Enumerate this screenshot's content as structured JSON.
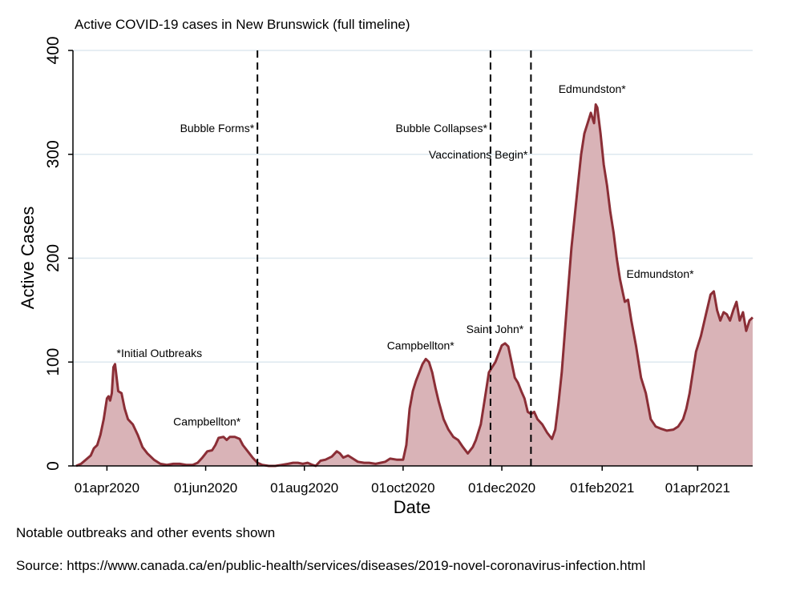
{
  "chart_data": {
    "type": "area",
    "title": "Active COVID-19 cases in New Brunswick (full timeline)",
    "xlabel": "Date",
    "ylabel": "Active Cases",
    "ylim": [
      0,
      400
    ],
    "yticks": [
      0,
      100,
      200,
      300,
      400
    ],
    "xlim": [
      "2020-03-11",
      "2021-05-05"
    ],
    "xticks": [
      {
        "date": "2020-04-01",
        "label": "01apr2020"
      },
      {
        "date": "2020-06-01",
        "label": "01jun2020"
      },
      {
        "date": "2020-08-01",
        "label": "01aug2020"
      },
      {
        "date": "2020-10-01",
        "label": "01oct2020"
      },
      {
        "date": "2020-12-01",
        "label": "01dec2020"
      },
      {
        "date": "2021-02-01",
        "label": "01feb2021"
      },
      {
        "date": "2021-04-01",
        "label": "01apr2021"
      }
    ],
    "grid": true,
    "colors": {
      "line": "#8b2e36",
      "fill": "#d9b3b7",
      "grid": "#dde8ef"
    },
    "series": [
      {
        "points": [
          [
            "2020-03-13",
            0
          ],
          [
            "2020-03-16",
            2
          ],
          [
            "2020-03-19",
            6
          ],
          [
            "2020-03-22",
            10
          ],
          [
            "2020-03-24",
            17
          ],
          [
            "2020-03-26",
            20
          ],
          [
            "2020-03-28",
            30
          ],
          [
            "2020-03-30",
            45
          ],
          [
            "2020-03-31",
            55
          ],
          [
            "2020-04-01",
            65
          ],
          [
            "2020-04-02",
            67
          ],
          [
            "2020-04-03",
            63
          ],
          [
            "2020-04-04",
            70
          ],
          [
            "2020-04-05",
            95
          ],
          [
            "2020-04-06",
            98
          ],
          [
            "2020-04-07",
            85
          ],
          [
            "2020-04-08",
            72
          ],
          [
            "2020-04-10",
            70
          ],
          [
            "2020-04-12",
            55
          ],
          [
            "2020-04-14",
            45
          ],
          [
            "2020-04-17",
            40
          ],
          [
            "2020-04-20",
            30
          ],
          [
            "2020-04-23",
            18
          ],
          [
            "2020-04-26",
            12
          ],
          [
            "2020-04-30",
            6
          ],
          [
            "2020-05-04",
            2
          ],
          [
            "2020-05-08",
            1
          ],
          [
            "2020-05-12",
            2
          ],
          [
            "2020-05-16",
            2
          ],
          [
            "2020-05-20",
            1
          ],
          [
            "2020-05-24",
            1
          ],
          [
            "2020-05-27",
            3
          ],
          [
            "2020-05-30",
            8
          ],
          [
            "2020-06-02",
            14
          ],
          [
            "2020-06-05",
            15
          ],
          [
            "2020-06-07",
            20
          ],
          [
            "2020-06-09",
            27
          ],
          [
            "2020-06-12",
            28
          ],
          [
            "2020-06-14",
            25
          ],
          [
            "2020-06-16",
            28
          ],
          [
            "2020-06-19",
            28
          ],
          [
            "2020-06-22",
            26
          ],
          [
            "2020-06-24",
            20
          ],
          [
            "2020-06-27",
            14
          ],
          [
            "2020-06-30",
            8
          ],
          [
            "2020-07-03",
            3
          ],
          [
            "2020-07-06",
            1
          ],
          [
            "2020-07-10",
            0
          ],
          [
            "2020-07-14",
            0
          ],
          [
            "2020-07-18",
            1
          ],
          [
            "2020-07-22",
            2
          ],
          [
            "2020-07-25",
            3
          ],
          [
            "2020-07-28",
            3
          ],
          [
            "2020-07-31",
            2
          ],
          [
            "2020-08-03",
            3
          ],
          [
            "2020-08-06",
            1
          ],
          [
            "2020-08-08",
            0
          ],
          [
            "2020-08-11",
            5
          ],
          [
            "2020-08-14",
            6
          ],
          [
            "2020-08-18",
            9
          ],
          [
            "2020-08-21",
            14
          ],
          [
            "2020-08-23",
            12
          ],
          [
            "2020-08-25",
            8
          ],
          [
            "2020-08-28",
            10
          ],
          [
            "2020-08-31",
            7
          ],
          [
            "2020-09-03",
            4
          ],
          [
            "2020-09-07",
            3
          ],
          [
            "2020-09-10",
            3
          ],
          [
            "2020-09-14",
            2
          ],
          [
            "2020-09-17",
            3
          ],
          [
            "2020-09-20",
            4
          ],
          [
            "2020-09-23",
            7
          ],
          [
            "2020-09-27",
            6
          ],
          [
            "2020-10-01",
            6
          ],
          [
            "2020-10-03",
            20
          ],
          [
            "2020-10-05",
            55
          ],
          [
            "2020-10-07",
            72
          ],
          [
            "2020-10-09",
            82
          ],
          [
            "2020-10-11",
            90
          ],
          [
            "2020-10-13",
            98
          ],
          [
            "2020-10-15",
            103
          ],
          [
            "2020-10-17",
            100
          ],
          [
            "2020-10-19",
            90
          ],
          [
            "2020-10-21",
            75
          ],
          [
            "2020-10-23",
            62
          ],
          [
            "2020-10-26",
            45
          ],
          [
            "2020-10-29",
            35
          ],
          [
            "2020-11-01",
            28
          ],
          [
            "2020-11-04",
            25
          ],
          [
            "2020-11-07",
            18
          ],
          [
            "2020-11-10",
            12
          ],
          [
            "2020-11-13",
            18
          ],
          [
            "2020-11-15",
            25
          ],
          [
            "2020-11-18",
            40
          ],
          [
            "2020-11-21",
            70
          ],
          [
            "2020-11-23",
            90
          ],
          [
            "2020-11-25",
            95
          ],
          [
            "2020-11-27",
            100
          ],
          [
            "2020-11-29",
            108
          ],
          [
            "2020-12-01",
            116
          ],
          [
            "2020-12-03",
            118
          ],
          [
            "2020-12-05",
            115
          ],
          [
            "2020-12-07",
            100
          ],
          [
            "2020-12-09",
            85
          ],
          [
            "2020-12-11",
            80
          ],
          [
            "2020-12-13",
            72
          ],
          [
            "2020-12-15",
            65
          ],
          [
            "2020-12-17",
            52
          ],
          [
            "2020-12-19",
            50
          ],
          [
            "2020-12-21",
            52
          ],
          [
            "2020-12-23",
            45
          ],
          [
            "2020-12-26",
            40
          ],
          [
            "2020-12-29",
            32
          ],
          [
            "2021-01-01",
            26
          ],
          [
            "2021-01-03",
            35
          ],
          [
            "2021-01-05",
            60
          ],
          [
            "2021-01-07",
            90
          ],
          [
            "2021-01-09",
            130
          ],
          [
            "2021-01-11",
            170
          ],
          [
            "2021-01-13",
            210
          ],
          [
            "2021-01-15",
            240
          ],
          [
            "2021-01-17",
            270
          ],
          [
            "2021-01-19",
            300
          ],
          [
            "2021-01-21",
            320
          ],
          [
            "2021-01-23",
            330
          ],
          [
            "2021-01-25",
            340
          ],
          [
            "2021-01-26",
            335
          ],
          [
            "2021-01-27",
            330
          ],
          [
            "2021-01-28",
            348
          ],
          [
            "2021-01-29",
            345
          ],
          [
            "2021-01-31",
            320
          ],
          [
            "2021-02-02",
            290
          ],
          [
            "2021-02-04",
            270
          ],
          [
            "2021-02-06",
            245
          ],
          [
            "2021-02-08",
            225
          ],
          [
            "2021-02-10",
            200
          ],
          [
            "2021-02-12",
            180
          ],
          [
            "2021-02-14",
            165
          ],
          [
            "2021-02-15",
            158
          ],
          [
            "2021-02-17",
            160
          ],
          [
            "2021-02-19",
            140
          ],
          [
            "2021-02-22",
            115
          ],
          [
            "2021-02-25",
            85
          ],
          [
            "2021-02-28",
            70
          ],
          [
            "2021-03-03",
            45
          ],
          [
            "2021-03-06",
            38
          ],
          [
            "2021-03-09",
            36
          ],
          [
            "2021-03-13",
            34
          ],
          [
            "2021-03-17",
            35
          ],
          [
            "2021-03-20",
            38
          ],
          [
            "2021-03-23",
            45
          ],
          [
            "2021-03-25",
            55
          ],
          [
            "2021-03-27",
            70
          ],
          [
            "2021-03-29",
            90
          ],
          [
            "2021-03-31",
            110
          ],
          [
            "2021-04-03",
            125
          ],
          [
            "2021-04-06",
            145
          ],
          [
            "2021-04-09",
            165
          ],
          [
            "2021-04-11",
            168
          ],
          [
            "2021-04-13",
            150
          ],
          [
            "2021-04-15",
            140
          ],
          [
            "2021-04-17",
            148
          ],
          [
            "2021-04-19",
            146
          ],
          [
            "2021-04-21",
            140
          ],
          [
            "2021-04-23",
            150
          ],
          [
            "2021-04-25",
            158
          ],
          [
            "2021-04-27",
            140
          ],
          [
            "2021-04-29",
            148
          ],
          [
            "2021-05-01",
            130
          ],
          [
            "2021-05-03",
            140
          ],
          [
            "2021-05-05",
            143
          ]
        ]
      }
    ],
    "vlines": [
      {
        "date": "2020-07-03",
        "label": "Bubble Forms*"
      },
      {
        "date": "2020-11-24",
        "label": "Bubble Collapses*"
      },
      {
        "date": "2020-12-19",
        "label": "Vaccinations Begin*"
      }
    ],
    "annotations": [
      {
        "text": "*Initial Outbreaks",
        "date": "2020-04-07",
        "value": 105
      },
      {
        "text": "Campbellton*",
        "date": "2020-05-12",
        "value": 39
      },
      {
        "text": "Campbellton*",
        "date": "2020-09-21",
        "value": 112
      },
      {
        "text": "Saint John*",
        "date": "2020-11-09",
        "value": 128
      },
      {
        "text": "Edmundston*",
        "date": "2021-01-05",
        "value": 359
      },
      {
        "text": "Edmundston*",
        "date": "2021-02-16",
        "value": 181
      }
    ]
  },
  "footer": {
    "note": "Notable outbreaks and other events shown",
    "source": "Source: https://www.canada.ca/en/public-health/services/diseases/2019-novel-coronavirus-infection.html"
  }
}
